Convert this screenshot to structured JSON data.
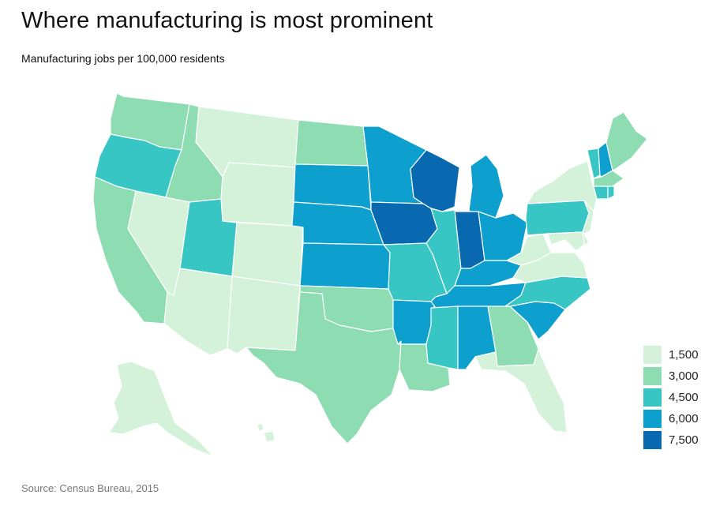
{
  "title": "Where manufacturing is most prominent",
  "subtitle": "Manufacturing jobs per 100,000 residents",
  "source": "Source: Census Bureau, 2015",
  "legend": [
    {
      "label": "1,500",
      "color": "#d4f2da"
    },
    {
      "label": "3,000",
      "color": "#8ddcb2"
    },
    {
      "label": "4,500",
      "color": "#38c6c4"
    },
    {
      "label": "6,000",
      "color": "#0d9fcd"
    },
    {
      "label": "7,500",
      "color": "#0868b0"
    }
  ],
  "map_data": {
    "type": "choropleth",
    "regions": [
      {
        "name": "Washington",
        "bin": 1
      },
      {
        "name": "Oregon",
        "bin": 2
      },
      {
        "name": "California",
        "bin": 1
      },
      {
        "name": "Nevada",
        "bin": 0
      },
      {
        "name": "Idaho",
        "bin": 1
      },
      {
        "name": "Montana",
        "bin": 0
      },
      {
        "name": "Wyoming",
        "bin": 0
      },
      {
        "name": "Utah",
        "bin": 2
      },
      {
        "name": "Arizona",
        "bin": 0
      },
      {
        "name": "Colorado",
        "bin": 0
      },
      {
        "name": "New Mexico",
        "bin": 0
      },
      {
        "name": "North Dakota",
        "bin": 1
      },
      {
        "name": "South Dakota",
        "bin": 3
      },
      {
        "name": "Nebraska",
        "bin": 3
      },
      {
        "name": "Kansas",
        "bin": 3
      },
      {
        "name": "Oklahoma",
        "bin": 1
      },
      {
        "name": "Texas",
        "bin": 1
      },
      {
        "name": "Minnesota",
        "bin": 3
      },
      {
        "name": "Iowa",
        "bin": 4
      },
      {
        "name": "Missouri",
        "bin": 2
      },
      {
        "name": "Arkansas",
        "bin": 3
      },
      {
        "name": "Louisiana",
        "bin": 1
      },
      {
        "name": "Wisconsin",
        "bin": 4
      },
      {
        "name": "Illinois",
        "bin": 2
      },
      {
        "name": "Michigan",
        "bin": 3
      },
      {
        "name": "Indiana",
        "bin": 4
      },
      {
        "name": "Ohio",
        "bin": 3
      },
      {
        "name": "Kentucky",
        "bin": 3
      },
      {
        "name": "Tennessee",
        "bin": 3
      },
      {
        "name": "Mississippi",
        "bin": 2
      },
      {
        "name": "Alabama",
        "bin": 3
      },
      {
        "name": "Georgia",
        "bin": 1
      },
      {
        "name": "Florida",
        "bin": 0
      },
      {
        "name": "South Carolina",
        "bin": 3
      },
      {
        "name": "North Carolina",
        "bin": 2
      },
      {
        "name": "Virginia",
        "bin": 0
      },
      {
        "name": "West Virginia",
        "bin": 0
      },
      {
        "name": "Pennsylvania",
        "bin": 2
      },
      {
        "name": "New York",
        "bin": 0
      },
      {
        "name": "New Jersey",
        "bin": 0
      },
      {
        "name": "Maryland",
        "bin": 0
      },
      {
        "name": "Delaware",
        "bin": 0
      },
      {
        "name": "Vermont",
        "bin": 2
      },
      {
        "name": "New Hampshire",
        "bin": 3
      },
      {
        "name": "Maine",
        "bin": 1
      },
      {
        "name": "Massachusetts",
        "bin": 1
      },
      {
        "name": "Connecticut",
        "bin": 2
      },
      {
        "name": "Rhode Island",
        "bin": 2
      },
      {
        "name": "Alaska",
        "bin": 0
      },
      {
        "name": "Hawaii",
        "bin": 0
      }
    ]
  }
}
